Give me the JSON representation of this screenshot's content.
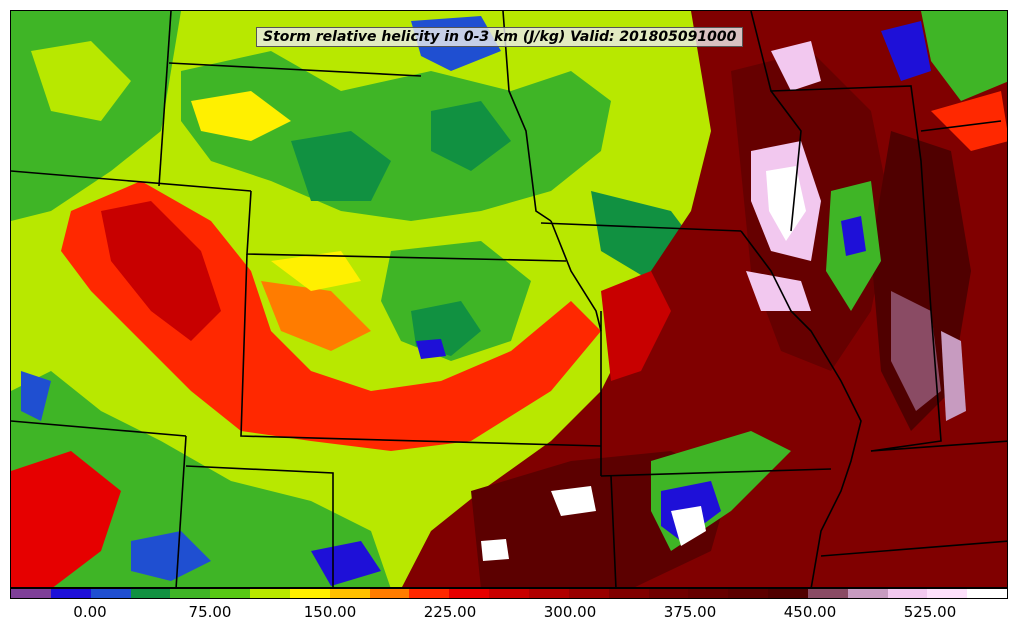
{
  "title": "Storm relative helicity in 0-3 km (J/kg) Valid: 201805091000",
  "map": {
    "field": "Storm relative helicity 0-3 km",
    "units": "J/kg",
    "valid": "201805091000"
  },
  "colorbar": {
    "colors": [
      "#7f3f98",
      "#1e10d8",
      "#1f4fd1",
      "#119141",
      "#3fb526",
      "#58c915",
      "#b8e800",
      "#fff000",
      "#ffc000",
      "#ff7c00",
      "#ff2800",
      "#e60000",
      "#c80000",
      "#b00000",
      "#990000",
      "#800000",
      "#700000",
      "#660000",
      "#5c0000",
      "#500000",
      "#8a4b64",
      "#c79bc0",
      "#f2c8ef",
      "#fde0fb",
      "#ffffff"
    ],
    "tick_labels": [
      "0.00",
      "75.00",
      "150.00",
      "225.00",
      "300.00",
      "375.00",
      "450.00",
      "525.00"
    ]
  }
}
